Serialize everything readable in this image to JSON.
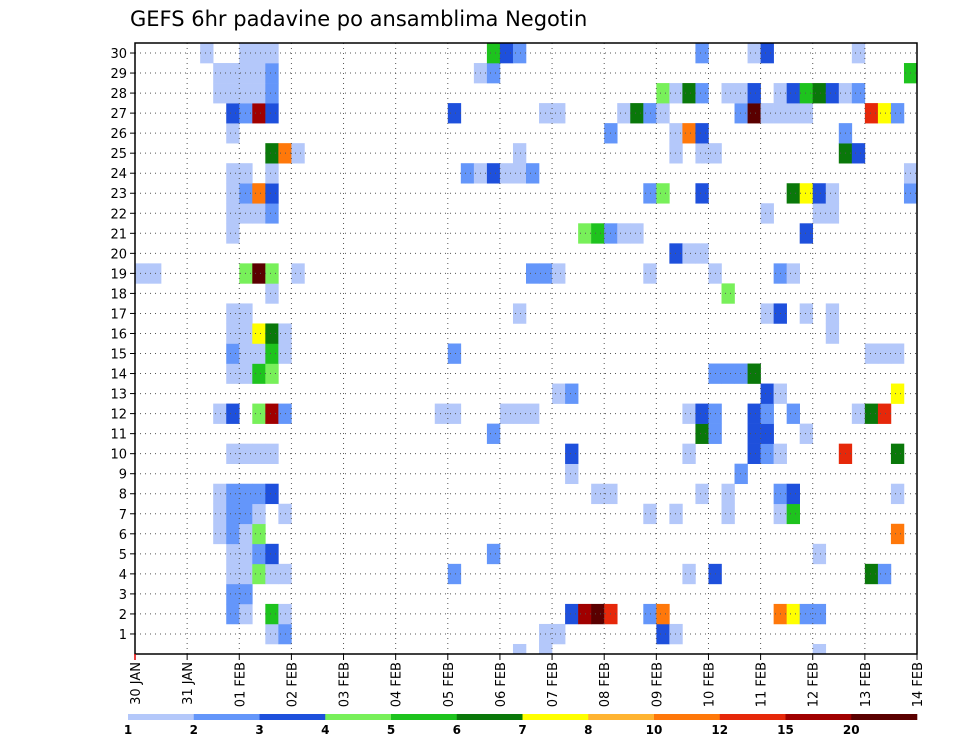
{
  "chart_data": {
    "type": "heatmap",
    "title": "GEFS 6hr padavine po ansamblima Negotin",
    "y_labels": [
      "1",
      "2",
      "3",
      "4",
      "5",
      "6",
      "7",
      "8",
      "9",
      "10",
      "11",
      "12",
      "13",
      "14",
      "15",
      "16",
      "17",
      "18",
      "19",
      "20",
      "21",
      "22",
      "23",
      "24",
      "25",
      "26",
      "27",
      "28",
      "29",
      "30"
    ],
    "x_tick_labels": [
      "30 JAN",
      "31 JAN",
      "01 FEB",
      "02 FEB",
      "03 FEB",
      "04 FEB",
      "05 FEB",
      "06 FEB",
      "07 FEB",
      "08 FEB",
      "09 FEB",
      "10 FEB",
      "11 FEB",
      "12 FEB",
      "13 FEB",
      "14 FEB"
    ],
    "time_steps_per_day": 4,
    "x_range_steps": [
      0,
      60
    ],
    "colorbar": {
      "tick_labels": [
        "1",
        "2",
        "3",
        "4",
        "5",
        "6",
        "7",
        "8",
        "10",
        "12",
        "15",
        "20"
      ],
      "colors": [
        "#b4c8fa",
        "#6496fa",
        "#1e50dc",
        "#78f05a",
        "#1ec31e",
        "#0a780a",
        "#ffff00",
        "#ffb432",
        "#ff780a",
        "#e6280a",
        "#a00000",
        "#5a0000"
      ]
    },
    "cells": [
      [
        1,
        11,
        1
      ],
      [
        1,
        12,
        2
      ],
      [
        1,
        32,
        1
      ],
      [
        1,
        33,
        1
      ],
      [
        1,
        41,
        3
      ],
      [
        1,
        42,
        1
      ],
      [
        2,
        8,
        2
      ],
      [
        2,
        9,
        1
      ],
      [
        2,
        11,
        5
      ],
      [
        2,
        12,
        1
      ],
      [
        2,
        34,
        3
      ],
      [
        2,
        35,
        11
      ],
      [
        2,
        36,
        12
      ],
      [
        2,
        37,
        10
      ],
      [
        2,
        40,
        2
      ],
      [
        2,
        41,
        9
      ],
      [
        2,
        50,
        9
      ],
      [
        2,
        51,
        7
      ],
      [
        2,
        52,
        2
      ],
      [
        2,
        53,
        2
      ],
      [
        3,
        8,
        2
      ],
      [
        3,
        9,
        2
      ],
      [
        4,
        8,
        1
      ],
      [
        4,
        9,
        1
      ],
      [
        4,
        10,
        4
      ],
      [
        4,
        11,
        1
      ],
      [
        4,
        12,
        1
      ],
      [
        4,
        25,
        2
      ],
      [
        4,
        43,
        1
      ],
      [
        4,
        45,
        3
      ],
      [
        4,
        57,
        6
      ],
      [
        4,
        58,
        2
      ],
      [
        5,
        8,
        1
      ],
      [
        5,
        9,
        1
      ],
      [
        5,
        10,
        2
      ],
      [
        5,
        11,
        3
      ],
      [
        5,
        28,
        2
      ],
      [
        5,
        53,
        1
      ],
      [
        6,
        7,
        1
      ],
      [
        6,
        8,
        2
      ],
      [
        6,
        9,
        1
      ],
      [
        6,
        10,
        4
      ],
      [
        6,
        59,
        9
      ],
      [
        7,
        7,
        1
      ],
      [
        7,
        8,
        2
      ],
      [
        7,
        9,
        2
      ],
      [
        7,
        10,
        1
      ],
      [
        7,
        12,
        1
      ],
      [
        7,
        40,
        1
      ],
      [
        7,
        42,
        1
      ],
      [
        7,
        46,
        1
      ],
      [
        7,
        50,
        1
      ],
      [
        7,
        51,
        5
      ],
      [
        8,
        7,
        1
      ],
      [
        8,
        8,
        2
      ],
      [
        8,
        9,
        2
      ],
      [
        8,
        10,
        2
      ],
      [
        8,
        11,
        3
      ],
      [
        8,
        36,
        1
      ],
      [
        8,
        37,
        1
      ],
      [
        8,
        44,
        1
      ],
      [
        8,
        46,
        1
      ],
      [
        8,
        50,
        2
      ],
      [
        8,
        51,
        3
      ],
      [
        8,
        59,
        1
      ],
      [
        9,
        34,
        1
      ],
      [
        9,
        47,
        2
      ],
      [
        10,
        8,
        1
      ],
      [
        10,
        9,
        1
      ],
      [
        10,
        10,
        1
      ],
      [
        10,
        11,
        1
      ],
      [
        10,
        34,
        3
      ],
      [
        10,
        43,
        1
      ],
      [
        10,
        48,
        3
      ],
      [
        10,
        49,
        2
      ],
      [
        10,
        50,
        1
      ],
      [
        10,
        55,
        10
      ],
      [
        10,
        59,
        6
      ],
      [
        11,
        28,
        2
      ],
      [
        11,
        44,
        6
      ],
      [
        11,
        45,
        2
      ],
      [
        11,
        48,
        3
      ],
      [
        11,
        49,
        3
      ],
      [
        11,
        52,
        1
      ],
      [
        12,
        7,
        1
      ],
      [
        12,
        8,
        3
      ],
      [
        12,
        10,
        4
      ],
      [
        12,
        11,
        11
      ],
      [
        12,
        12,
        2
      ],
      [
        12,
        24,
        1
      ],
      [
        12,
        25,
        1
      ],
      [
        12,
        29,
        1
      ],
      [
        12,
        30,
        1
      ],
      [
        12,
        31,
        1
      ],
      [
        12,
        43,
        1
      ],
      [
        12,
        44,
        3
      ],
      [
        12,
        45,
        2
      ],
      [
        12,
        48,
        3
      ],
      [
        12,
        49,
        2
      ],
      [
        12,
        51,
        2
      ],
      [
        12,
        56,
        1
      ],
      [
        12,
        57,
        6
      ],
      [
        12,
        58,
        10
      ],
      [
        13,
        33,
        1
      ],
      [
        13,
        34,
        2
      ],
      [
        13,
        49,
        3
      ],
      [
        13,
        50,
        1
      ],
      [
        13,
        59,
        7
      ],
      [
        14,
        8,
        1
      ],
      [
        14,
        9,
        1
      ],
      [
        14,
        10,
        5
      ],
      [
        14,
        11,
        4
      ],
      [
        14,
        45,
        2
      ],
      [
        14,
        46,
        2
      ],
      [
        14,
        47,
        2
      ],
      [
        14,
        48,
        6
      ],
      [
        15,
        8,
        2
      ],
      [
        15,
        9,
        1
      ],
      [
        15,
        10,
        1
      ],
      [
        15,
        11,
        5
      ],
      [
        15,
        12,
        1
      ],
      [
        15,
        25,
        2
      ],
      [
        15,
        57,
        1
      ],
      [
        15,
        58,
        1
      ],
      [
        15,
        59,
        1
      ],
      [
        16,
        8,
        1
      ],
      [
        16,
        9,
        1
      ],
      [
        16,
        10,
        7
      ],
      [
        16,
        11,
        6
      ],
      [
        16,
        12,
        1
      ],
      [
        16,
        54,
        1
      ],
      [
        17,
        8,
        1
      ],
      [
        17,
        9,
        1
      ],
      [
        17,
        30,
        1
      ],
      [
        17,
        49,
        1
      ],
      [
        17,
        50,
        3
      ],
      [
        17,
        52,
        1
      ],
      [
        17,
        54,
        1
      ],
      [
        18,
        11,
        1
      ],
      [
        18,
        46,
        4
      ],
      [
        19,
        1,
        1
      ],
      [
        19,
        2,
        1
      ],
      [
        19,
        9,
        4
      ],
      [
        19,
        10,
        12
      ],
      [
        19,
        11,
        4
      ],
      [
        19,
        13,
        1
      ],
      [
        19,
        31,
        2
      ],
      [
        19,
        32,
        2
      ],
      [
        19,
        33,
        1
      ],
      [
        19,
        40,
        1
      ],
      [
        19,
        45,
        1
      ],
      [
        19,
        50,
        2
      ],
      [
        19,
        51,
        1
      ],
      [
        20,
        42,
        3
      ],
      [
        20,
        43,
        1
      ],
      [
        20,
        44,
        1
      ],
      [
        21,
        8,
        1
      ],
      [
        21,
        35,
        4
      ],
      [
        21,
        36,
        5
      ],
      [
        21,
        37,
        2
      ],
      [
        21,
        38,
        1
      ],
      [
        21,
        39,
        1
      ],
      [
        21,
        52,
        3
      ],
      [
        22,
        8,
        1
      ],
      [
        22,
        9,
        1
      ],
      [
        22,
        10,
        1
      ],
      [
        22,
        11,
        2
      ],
      [
        22,
        49,
        1
      ],
      [
        22,
        53,
        1
      ],
      [
        22,
        54,
        1
      ],
      [
        23,
        8,
        1
      ],
      [
        23,
        9,
        2
      ],
      [
        23,
        10,
        9
      ],
      [
        23,
        11,
        3
      ],
      [
        23,
        40,
        2
      ],
      [
        23,
        41,
        4
      ],
      [
        23,
        44,
        3
      ],
      [
        23,
        51,
        6
      ],
      [
        23,
        52,
        7
      ],
      [
        23,
        53,
        3
      ],
      [
        23,
        54,
        1
      ],
      [
        23,
        60,
        2
      ],
      [
        24,
        8,
        1
      ],
      [
        24,
        9,
        1
      ],
      [
        24,
        11,
        1
      ],
      [
        24,
        26,
        2
      ],
      [
        24,
        27,
        1
      ],
      [
        24,
        28,
        3
      ],
      [
        24,
        29,
        1
      ],
      [
        24,
        30,
        1
      ],
      [
        24,
        31,
        2
      ],
      [
        24,
        60,
        1
      ],
      [
        25,
        11,
        6
      ],
      [
        25,
        12,
        9
      ],
      [
        25,
        13,
        1
      ],
      [
        25,
        30,
        1
      ],
      [
        25,
        42,
        1
      ],
      [
        25,
        44,
        1
      ],
      [
        25,
        45,
        1
      ],
      [
        25,
        55,
        6
      ],
      [
        25,
        56,
        3
      ],
      [
        26,
        8,
        1
      ],
      [
        26,
        37,
        2
      ],
      [
        26,
        42,
        1
      ],
      [
        26,
        43,
        9
      ],
      [
        26,
        44,
        3
      ],
      [
        26,
        55,
        2
      ],
      [
        27,
        8,
        3
      ],
      [
        27,
        9,
        2
      ],
      [
        27,
        10,
        11
      ],
      [
        27,
        11,
        3
      ],
      [
        27,
        25,
        3
      ],
      [
        27,
        32,
        1
      ],
      [
        27,
        33,
        1
      ],
      [
        27,
        38,
        1
      ],
      [
        27,
        39,
        6
      ],
      [
        27,
        40,
        2
      ],
      [
        27,
        41,
        1
      ],
      [
        27,
        47,
        2
      ],
      [
        27,
        48,
        12
      ],
      [
        27,
        49,
        1
      ],
      [
        27,
        50,
        1
      ],
      [
        27,
        51,
        1
      ],
      [
        27,
        52,
        1
      ],
      [
        27,
        57,
        10
      ],
      [
        27,
        58,
        7
      ],
      [
        27,
        59,
        2
      ],
      [
        28,
        7,
        1
      ],
      [
        28,
        8,
        1
      ],
      [
        28,
        9,
        1
      ],
      [
        28,
        10,
        1
      ],
      [
        28,
        11,
        2
      ],
      [
        28,
        41,
        4
      ],
      [
        28,
        42,
        1
      ],
      [
        28,
        43,
        6
      ],
      [
        28,
        44,
        2
      ],
      [
        28,
        46,
        1
      ],
      [
        28,
        47,
        1
      ],
      [
        28,
        48,
        3
      ],
      [
        28,
        50,
        1
      ],
      [
        28,
        51,
        3
      ],
      [
        28,
        52,
        5
      ],
      [
        28,
        53,
        6
      ],
      [
        28,
        54,
        3
      ],
      [
        28,
        55,
        1
      ],
      [
        28,
        56,
        2
      ],
      [
        29,
        7,
        1
      ],
      [
        29,
        8,
        1
      ],
      [
        29,
        9,
        1
      ],
      [
        29,
        10,
        1
      ],
      [
        29,
        11,
        2
      ],
      [
        29,
        27,
        1
      ],
      [
        29,
        28,
        2
      ],
      [
        29,
        60,
        5
      ],
      [
        30,
        6,
        1
      ],
      [
        30,
        9,
        1
      ],
      [
        30,
        10,
        1
      ],
      [
        30,
        11,
        1
      ],
      [
        30,
        28,
        5
      ],
      [
        30,
        29,
        3
      ],
      [
        30,
        30,
        2
      ],
      [
        30,
        44,
        2
      ],
      [
        30,
        48,
        1
      ],
      [
        30,
        49,
        3
      ],
      [
        30,
        56,
        1
      ]
    ],
    "extra_cells_bottom": [
      [
        30,
        1
      ],
      [
        32,
        1
      ],
      [
        53,
        1
      ]
    ]
  }
}
